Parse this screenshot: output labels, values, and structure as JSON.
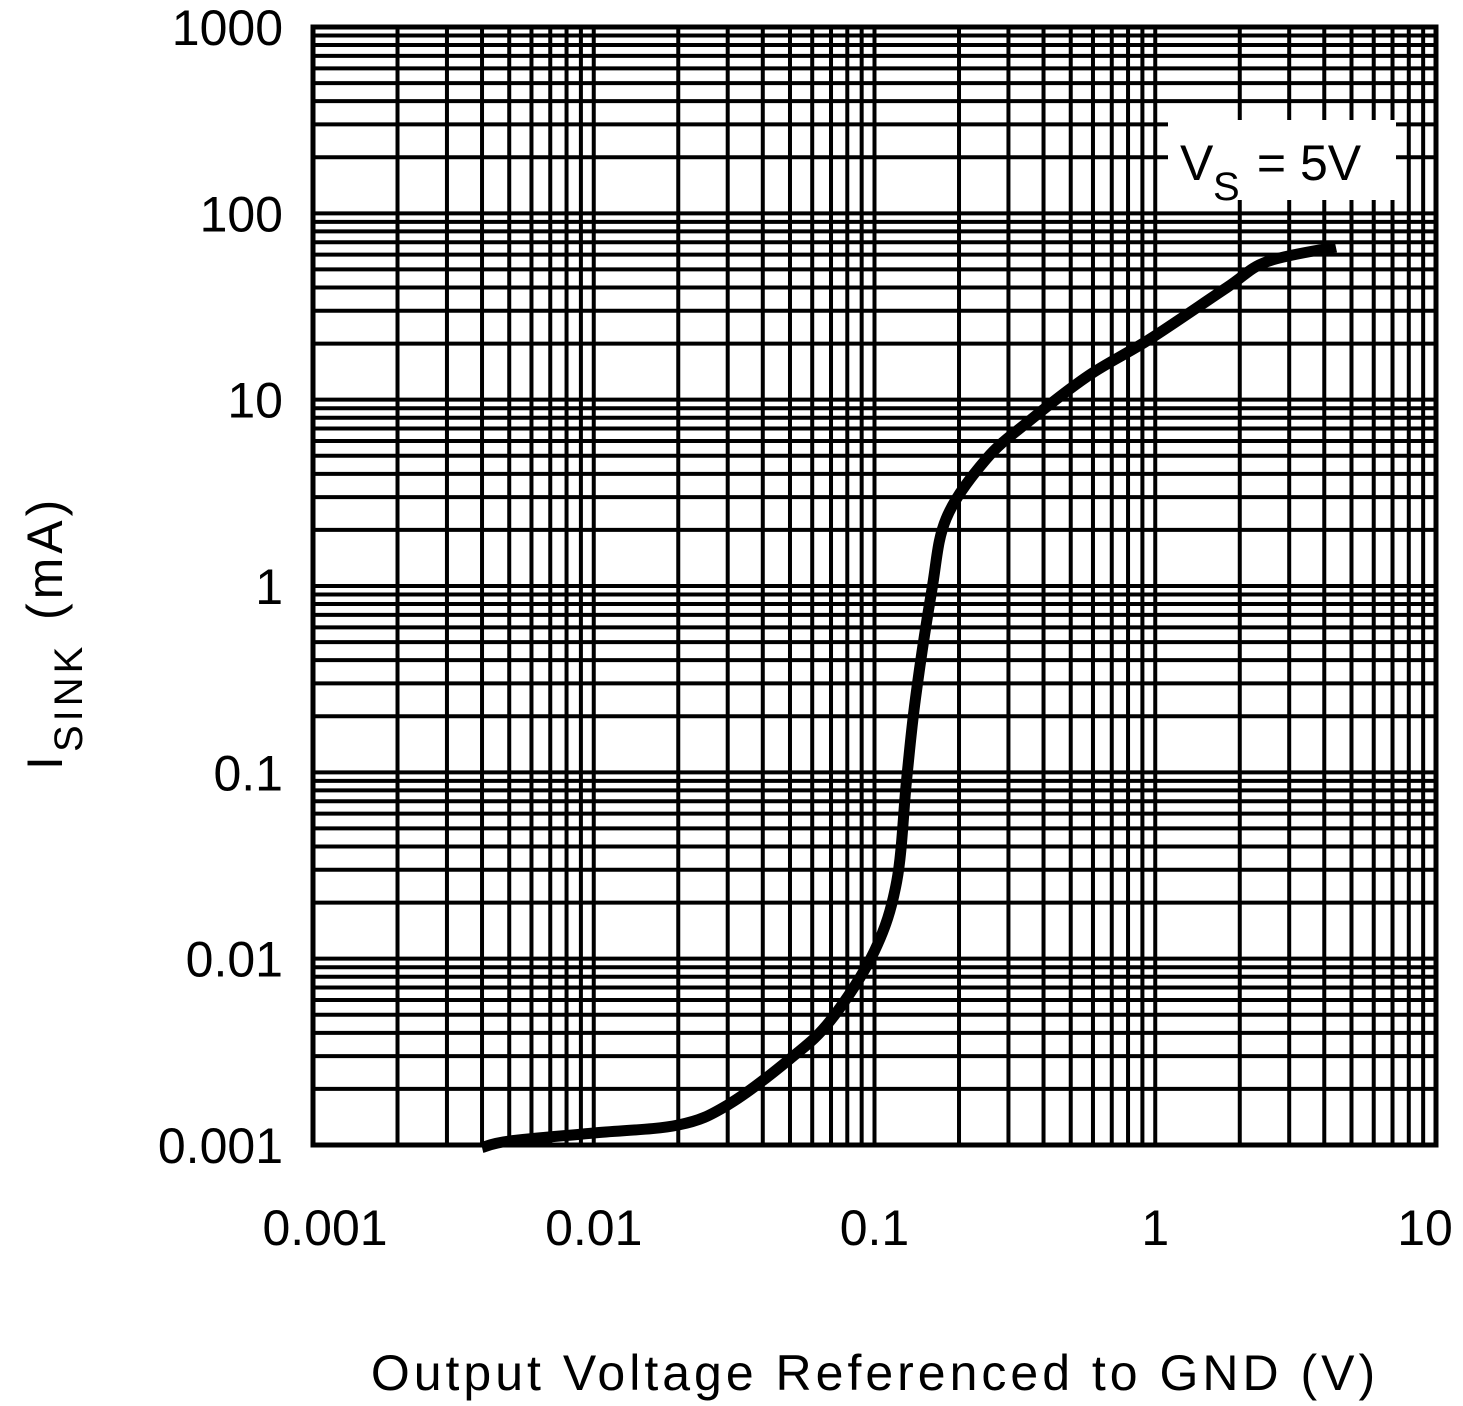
{
  "chart_data": {
    "type": "line",
    "title": "",
    "xlabel": "Output Voltage Referenced to GND (V)",
    "ylabel": {
      "main": "I",
      "subscript": "SINK",
      "unit": "(mA)"
    },
    "xscale": "log",
    "yscale": "log",
    "xlim": [
      0.001,
      10
    ],
    "ylim": [
      0.001,
      1000
    ],
    "grid": true,
    "x_ticks": [
      "0.001",
      "0.01",
      "0.1",
      "1",
      "10"
    ],
    "y_ticks": [
      "0.001",
      "0.01",
      "0.1",
      "1",
      "10",
      "100",
      "1000"
    ],
    "annotation": {
      "main": "V",
      "subscript": "S",
      "rest": " = 5V"
    },
    "colors": {
      "line": "#000000",
      "grid": "#000000",
      "background": "#ffffff"
    },
    "series": [
      {
        "x": [
          0.004,
          0.005,
          0.01,
          0.02,
          0.03,
          0.05,
          0.07,
          0.1,
          0.12,
          0.13,
          0.14,
          0.16,
          0.18,
          0.25,
          0.36,
          0.58,
          0.95,
          1.8,
          2.5,
          4.4
        ],
        "y": [
          0.00097,
          0.00105,
          0.00116,
          0.00128,
          0.00164,
          0.0029,
          0.0047,
          0.011,
          0.026,
          0.09,
          0.25,
          0.95,
          2.3,
          4.8,
          7.8,
          13.5,
          21,
          40,
          55,
          66
        ]
      }
    ]
  }
}
